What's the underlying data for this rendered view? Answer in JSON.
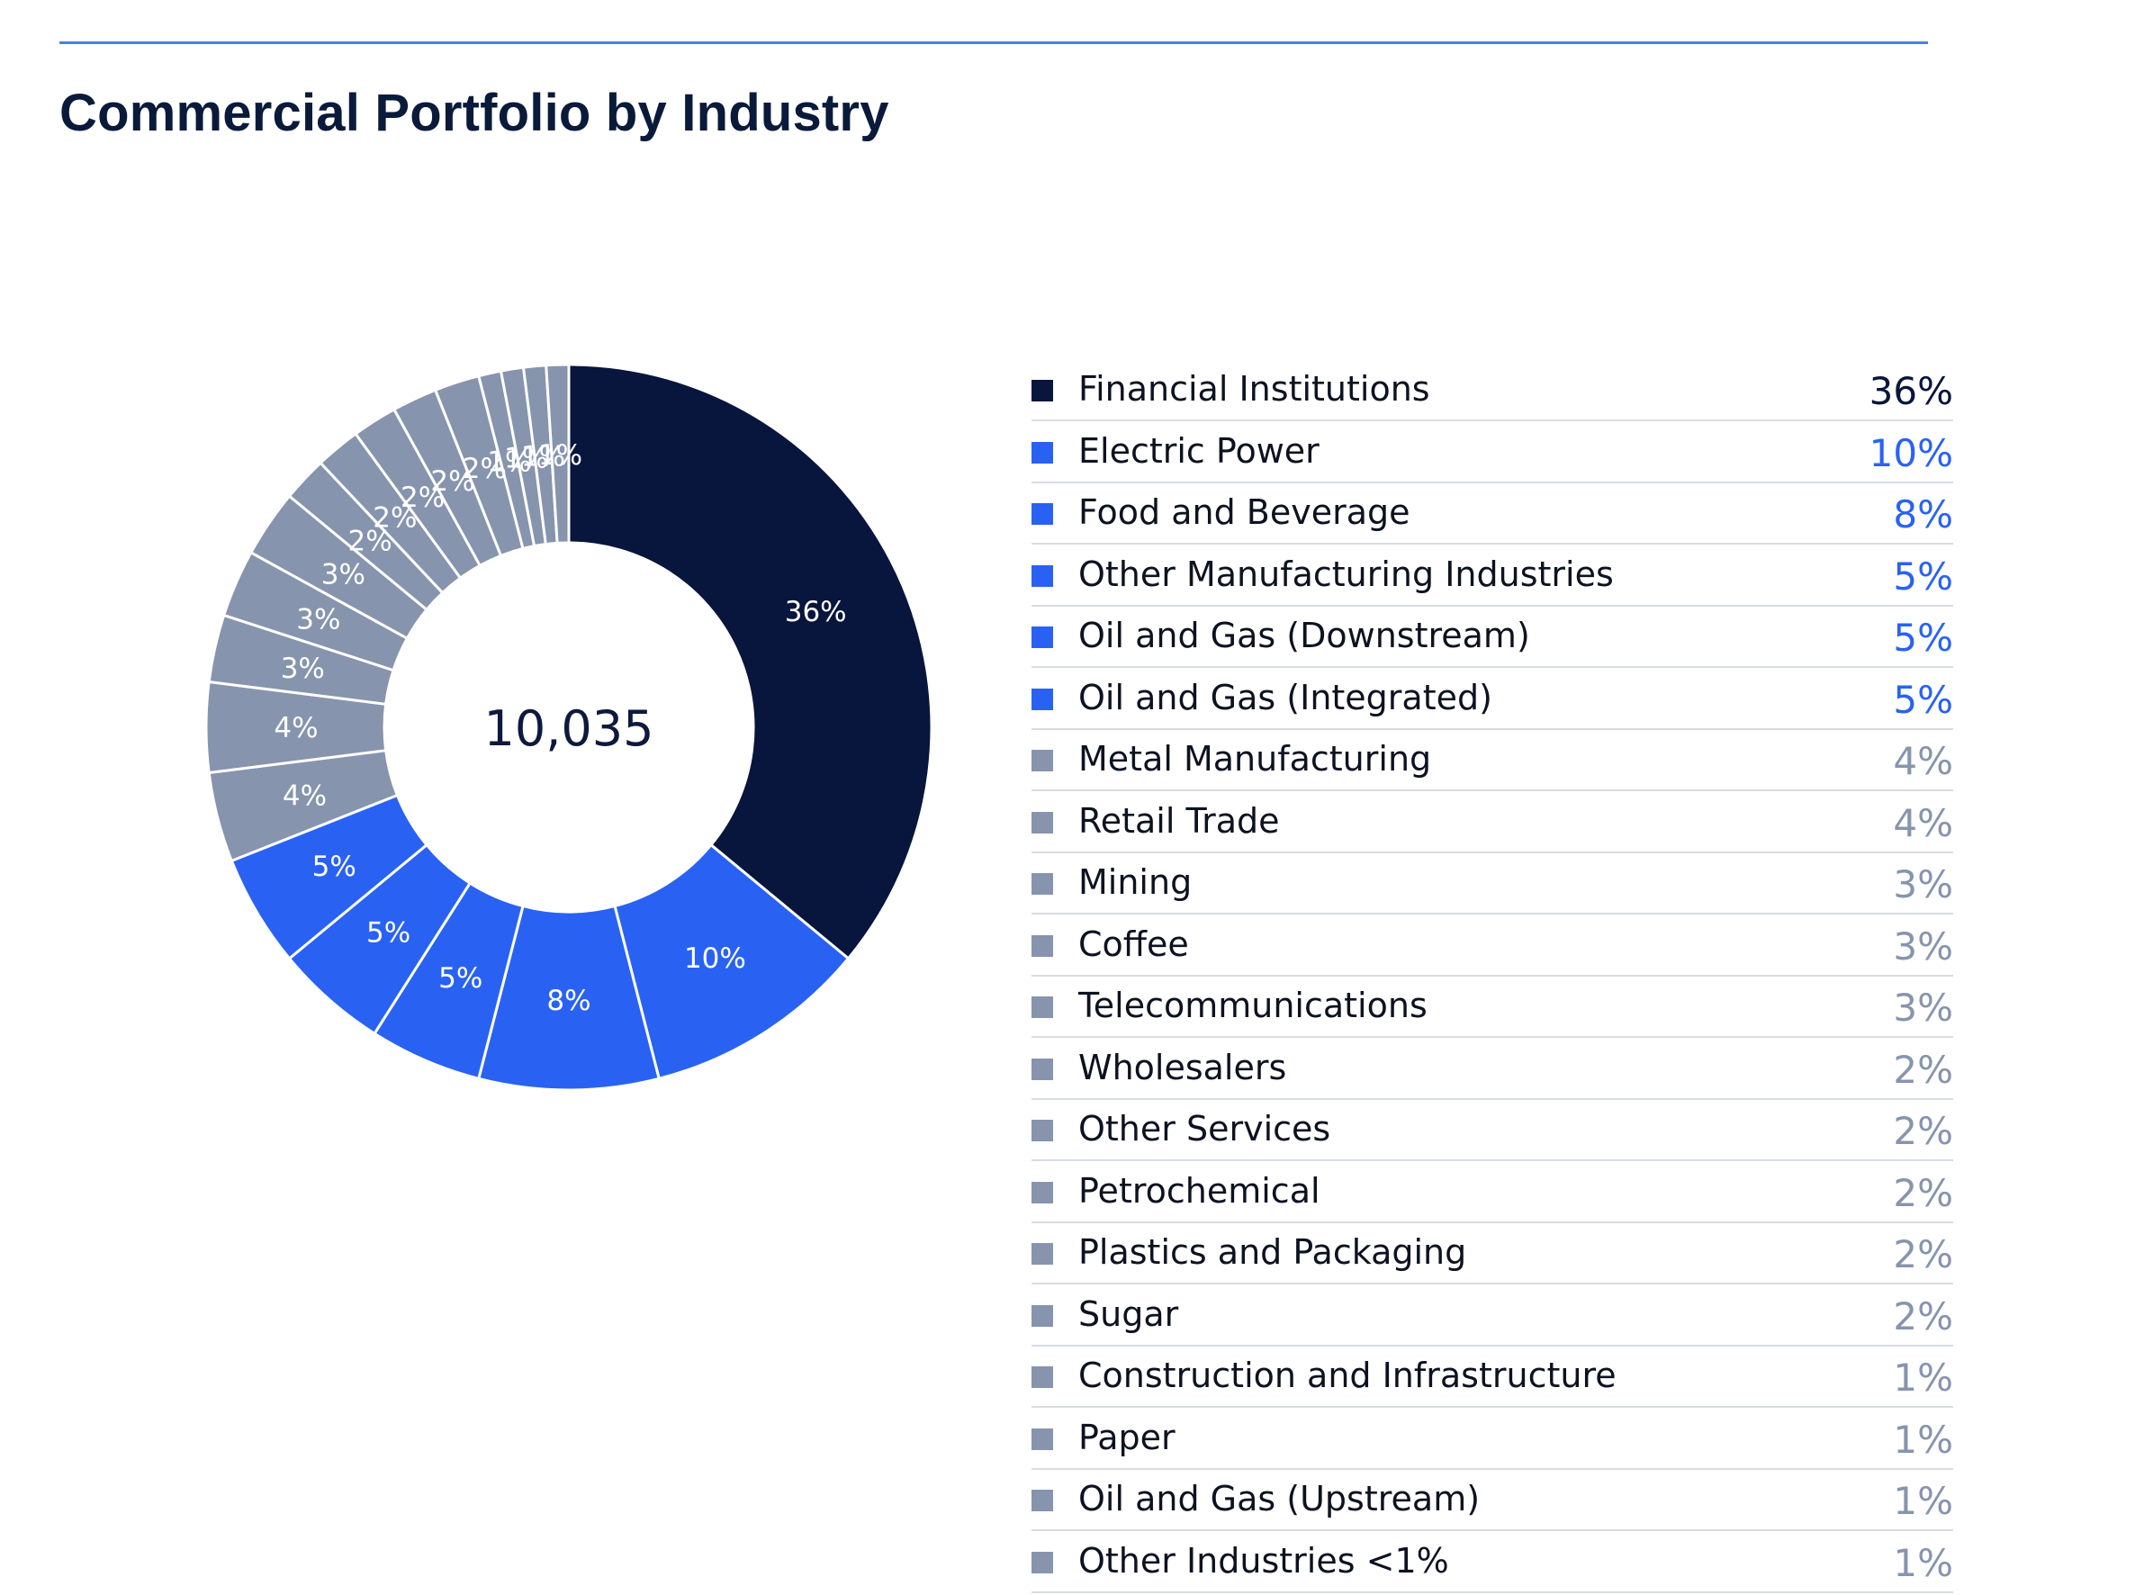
{
  "title": "Commercial Portfolio by Industry",
  "colors": {
    "dark": "#08153d",
    "blue": "#2962f3",
    "gray": "#8794ae",
    "rule": "#4d7fe0"
  },
  "chart_data": {
    "type": "pie",
    "subtype": "donut",
    "center_label": "10,035",
    "categories": [
      "Financial Institutions",
      "Electric Power",
      "Food and Beverage",
      "Other Manufacturing Industries",
      "Oil and Gas (Downstream)",
      "Oil and Gas (Integrated)",
      "Metal Manufacturing",
      "Retail Trade",
      "Mining",
      "Coffee",
      "Telecommunications",
      "Wholesalers",
      "Other Services",
      "Petrochemical",
      "Plastics and Packaging",
      "Sugar",
      "Construction and Infrastructure",
      "Paper",
      "Oil and Gas (Upstream)",
      "Other Industries <1%"
    ],
    "values": [
      36,
      10,
      8,
      5,
      5,
      5,
      4,
      4,
      3,
      3,
      3,
      2,
      2,
      2,
      2,
      2,
      1,
      1,
      1,
      1
    ],
    "value_labels": [
      "36%",
      "10%",
      "8%",
      "5%",
      "5%",
      "5%",
      "4%",
      "4%",
      "3%",
      "3%",
      "3%",
      "2%",
      "2%",
      "2%",
      "2%",
      "2%",
      "1%",
      "1%",
      "1%",
      "1%"
    ],
    "color_groups": [
      "dark",
      "blue",
      "blue",
      "blue",
      "blue",
      "blue",
      "gray",
      "gray",
      "gray",
      "gray",
      "gray",
      "gray",
      "gray",
      "gray",
      "gray",
      "gray",
      "gray",
      "gray",
      "gray",
      "gray"
    ],
    "start_angle": "12 o'clock",
    "direction": "clockwise",
    "legend": "right"
  }
}
